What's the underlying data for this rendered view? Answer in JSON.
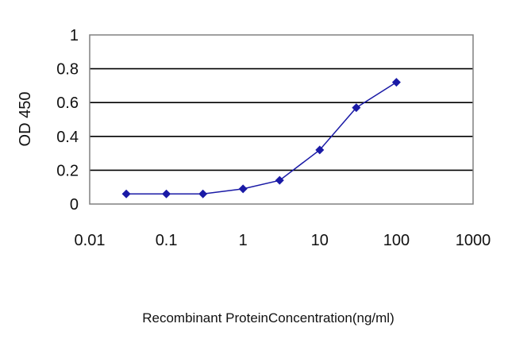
{
  "chart_data": {
    "type": "line",
    "title": "",
    "xlabel": "Recombinant ProteinConcentration(ng/ml)",
    "ylabel": "OD 450",
    "x_scale": "log",
    "xlim": [
      0.01,
      1000
    ],
    "ylim": [
      0,
      1
    ],
    "x_ticks": [
      "0.01",
      "0.1",
      "1",
      "10",
      "100",
      "1000"
    ],
    "y_ticks": [
      "0",
      "0.2",
      "0.4",
      "0.6",
      "0.8",
      "1"
    ],
    "grid": "horizontal",
    "legend": "none",
    "series": [
      {
        "color": "#1a1aa6",
        "marker": "diamond",
        "x": [
          0.03,
          0.1,
          0.3,
          1,
          3,
          10,
          30,
          100
        ],
        "y": [
          0.06,
          0.06,
          0.06,
          0.09,
          0.14,
          0.32,
          0.57,
          0.72
        ]
      }
    ],
    "colors": {
      "plot_bg": "#ffffff",
      "grid": "#000000",
      "series": "#1a1aa6"
    }
  }
}
